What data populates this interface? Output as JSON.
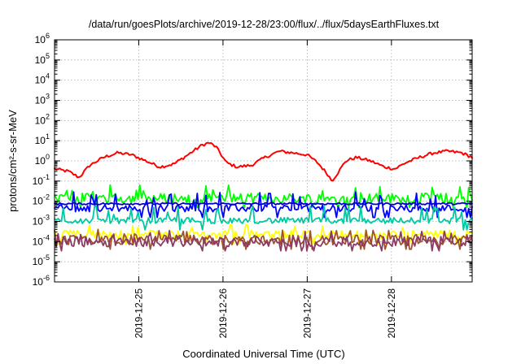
{
  "chart_data": {
    "type": "line",
    "title": "/data/run/goesPlots/archive/2019-12-28/23:00/flux/../flux/5daysEarthFluxes.txt",
    "xlabel": "Coordinated Universal Time (UTC)",
    "ylabel": "protons/cm²-s-sr-MeV",
    "y_scale": "log",
    "ylim": [
      1e-06,
      1000000.0
    ],
    "y_ticks": [
      {
        "base": "10",
        "exp": "-6"
      },
      {
        "base": "10",
        "exp": "-5"
      },
      {
        "base": "10",
        "exp": "-4"
      },
      {
        "base": "10",
        "exp": "-3"
      },
      {
        "base": "10",
        "exp": "-2"
      },
      {
        "base": "10",
        "exp": "-1"
      },
      {
        "base": "10",
        "exp": "0"
      },
      {
        "base": "10",
        "exp": "1"
      },
      {
        "base": "10",
        "exp": "2"
      },
      {
        "base": "10",
        "exp": "3"
      },
      {
        "base": "10",
        "exp": "4"
      },
      {
        "base": "10",
        "exp": "5"
      },
      {
        "base": "10",
        "exp": "6"
      }
    ],
    "xlim": [
      "2019-12-24T00:00",
      "2019-12-28T23:00"
    ],
    "x_ticks": [
      "2019-12-25",
      "2019-12-26",
      "2019-12-27",
      "2019-12-28"
    ],
    "grid": true,
    "series": [
      {
        "color": "#ff0000",
        "keypoints": [
          [
            "2019-12-24T00:00",
            0.4
          ],
          [
            "2019-12-24T04:00",
            0.3
          ],
          [
            "2019-12-24T07:00",
            0.15
          ],
          [
            "2019-12-24T10:00",
            0.6
          ],
          [
            "2019-12-24T14:00",
            1.5
          ],
          [
            "2019-12-24T18:00",
            2.5
          ],
          [
            "2019-12-24T22:00",
            2.0
          ],
          [
            "2019-12-25T02:00",
            1.0
          ],
          [
            "2019-12-25T06:00",
            0.5
          ],
          [
            "2019-12-25T10:00",
            0.7
          ],
          [
            "2019-12-25T14:00",
            2.0
          ],
          [
            "2019-12-25T18:00",
            6.0
          ],
          [
            "2019-12-25T20:00",
            8.0
          ],
          [
            "2019-12-25T22:00",
            5.0
          ],
          [
            "2019-12-26T01:00",
            0.8
          ],
          [
            "2019-12-26T04:00",
            0.5
          ],
          [
            "2019-12-26T08:00",
            0.6
          ],
          [
            "2019-12-26T12:00",
            1.5
          ],
          [
            "2019-12-26T16:00",
            3.0
          ],
          [
            "2019-12-26T20:00",
            2.5
          ],
          [
            "2019-12-27T00:00",
            2.0
          ],
          [
            "2019-12-27T03:00",
            0.8
          ],
          [
            "2019-12-27T06:00",
            0.2
          ],
          [
            "2019-12-27T07:00",
            0.1
          ],
          [
            "2019-12-27T09:00",
            0.3
          ],
          [
            "2019-12-27T11:00",
            1.0
          ],
          [
            "2019-12-27T14:00",
            1.5
          ],
          [
            "2019-12-27T18:00",
            1.0
          ],
          [
            "2019-12-27T22:00",
            0.5
          ],
          [
            "2019-12-28T01:00",
            0.4
          ],
          [
            "2019-12-28T04:00",
            0.8
          ],
          [
            "2019-12-28T08:00",
            1.5
          ],
          [
            "2019-12-28T12:00",
            2.5
          ],
          [
            "2019-12-28T16:00",
            3.0
          ],
          [
            "2019-12-28T20:00",
            2.5
          ],
          [
            "2019-12-28T23:00",
            1.5
          ]
        ],
        "spread": 0.15
      },
      {
        "color": "#00ff00",
        "base": 0.014,
        "spread": 0.25,
        "spikes": 0.045
      },
      {
        "color": "#0000ff",
        "base": 0.0045,
        "spread": 0.18,
        "spikes": 0.02
      },
      {
        "color": "#0000cc",
        "base": 0.0075,
        "spread": 0.05,
        "spikes": 0.0
      },
      {
        "color": "#00c8a0",
        "base": 0.0011,
        "spread": 0.15,
        "spikes": 0.004
      },
      {
        "color": "#ffff00",
        "base": 0.00022,
        "spread": 0.22,
        "spikes": 0.0005
      },
      {
        "color": "#a0522d",
        "base": 0.00012,
        "spread": 0.25,
        "spikes": 0.0003
      },
      {
        "color": "#8b3a62",
        "base": 0.0001,
        "spread": 0.25,
        "spikes": 0.00025
      }
    ]
  }
}
